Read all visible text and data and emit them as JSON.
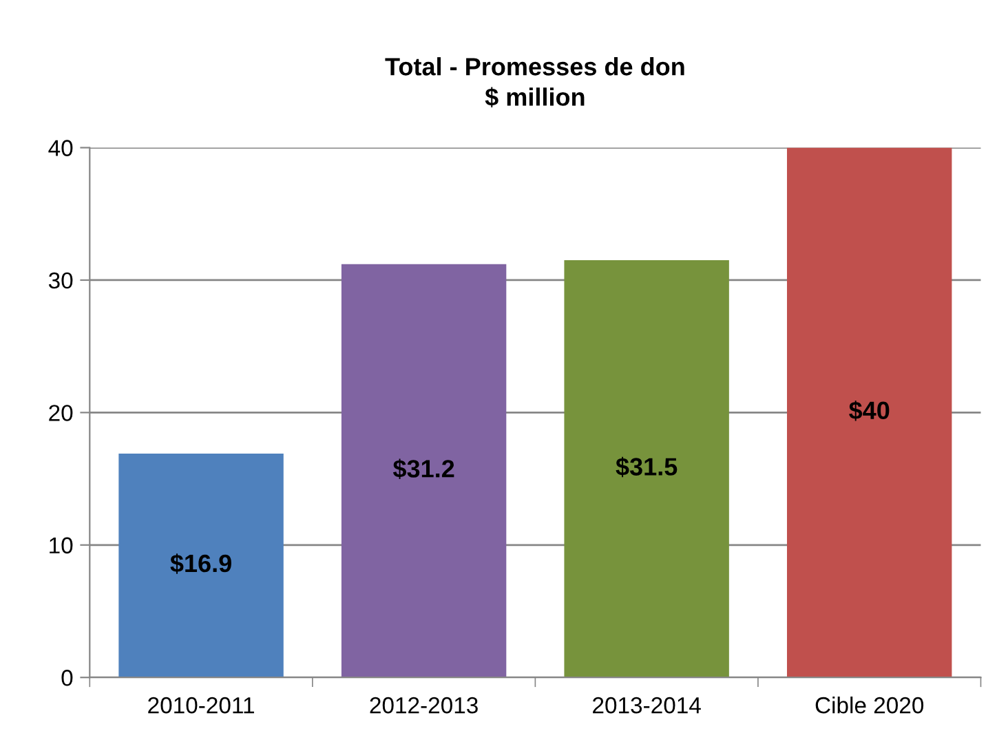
{
  "chart_data": {
    "type": "bar",
    "title": "Total - Promesses de don\n$ million",
    "categories": [
      "2010-2011",
      "2012-2013",
      "2013-2014",
      "Cible 2020"
    ],
    "values": [
      16.9,
      31.2,
      31.5,
      40
    ],
    "colors": [
      "#4f81bd",
      "#8064a2",
      "#77933c",
      "#c0504d"
    ],
    "value_labels": [
      "$16.9",
      "$31.2",
      "$31.5",
      "$40"
    ],
    "ylim": [
      0,
      40
    ],
    "yticks": [
      0,
      10,
      20,
      30,
      40
    ],
    "grid": "y",
    "legend": false
  }
}
